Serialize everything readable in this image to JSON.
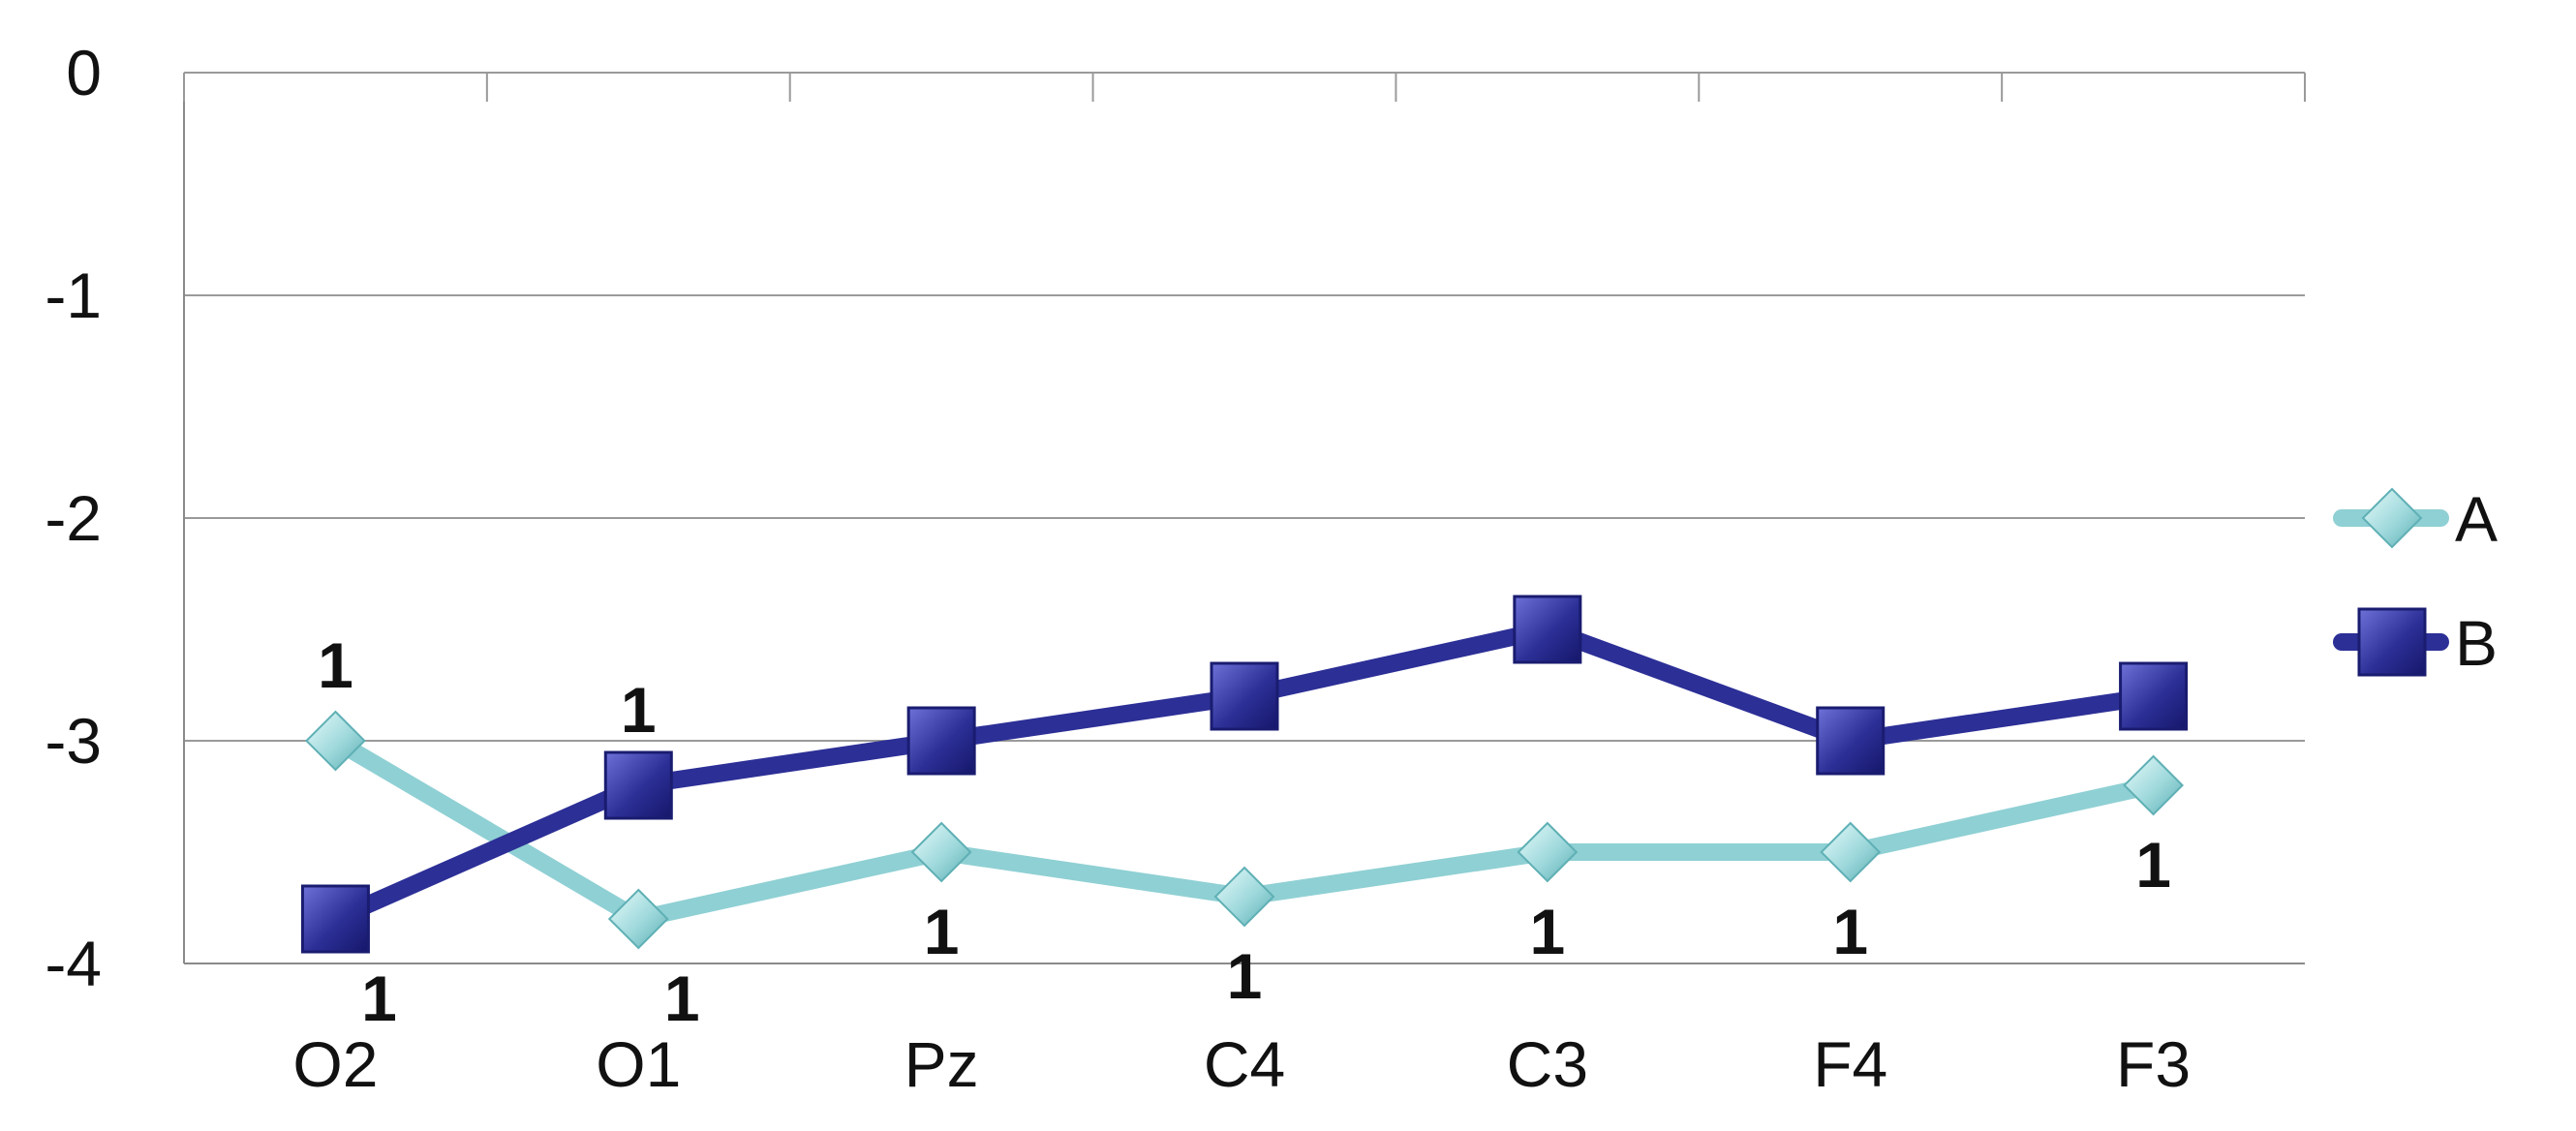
{
  "chart_data": {
    "type": "line",
    "categories": [
      "O2",
      "O1",
      "Pz",
      "C4",
      "C3",
      "F4",
      "F3"
    ],
    "ylim": [
      -4,
      0
    ],
    "yticks": [
      0,
      -1,
      -2,
      -3,
      -4
    ],
    "grid": true,
    "legend_position": "right",
    "series": [
      {
        "name": "A",
        "color": "#8fd0d4",
        "marker": "diamond",
        "values": [
          -3.0,
          -3.8,
          -3.5,
          -3.7,
          -3.5,
          -3.5,
          -3.2
        ],
        "labels": [
          "1",
          "1",
          "1",
          "1",
          "1",
          "1",
          "1"
        ]
      },
      {
        "name": "B",
        "color": "#2c2f96",
        "marker": "square",
        "values": [
          -3.8,
          -3.2,
          -3.0,
          -2.8,
          -2.5,
          -3.0,
          -2.8
        ],
        "labels": [
          "1",
          "1",
          "",
          "",
          "",
          "",
          ""
        ]
      }
    ]
  }
}
